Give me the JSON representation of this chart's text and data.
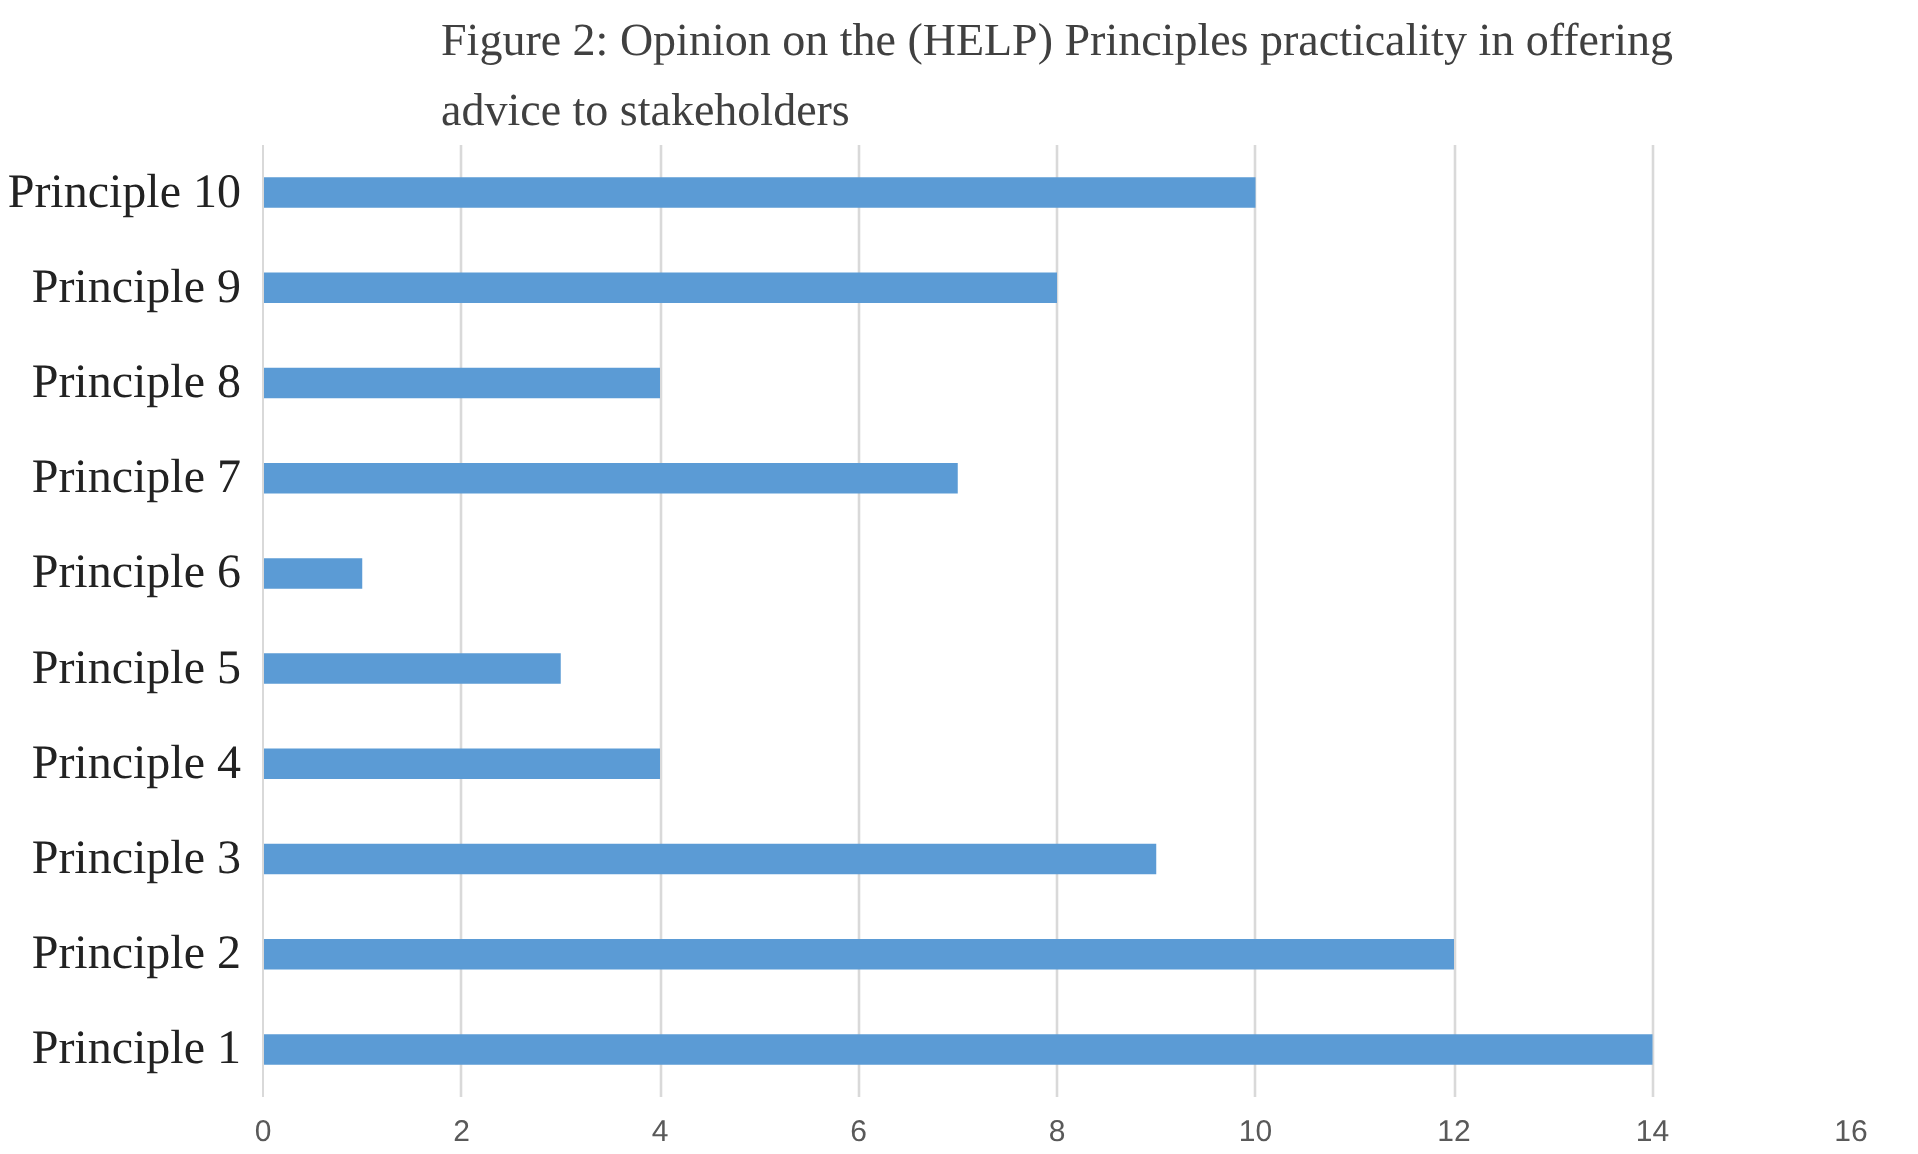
{
  "chart_data": {
    "type": "bar",
    "orientation": "horizontal",
    "title": "Figure 2: Opinion on the (HELP) Principles practicality in offering\nadvice to stakeholders",
    "categories": [
      "Principle 10",
      "Principle 9",
      "Principle 8",
      "Principle 7",
      "Principle 6",
      "Principle 5",
      "Principle 4",
      "Principle 3",
      "Principle 2",
      "Principle 1"
    ],
    "values": [
      10,
      8,
      4,
      7,
      1,
      3,
      4,
      9,
      12,
      14
    ],
    "color": "#5b9bd5",
    "xlim": [
      0,
      16
    ],
    "xticks": [
      0,
      2,
      4,
      6,
      8,
      10,
      12,
      14,
      16
    ],
    "grid": "x"
  }
}
